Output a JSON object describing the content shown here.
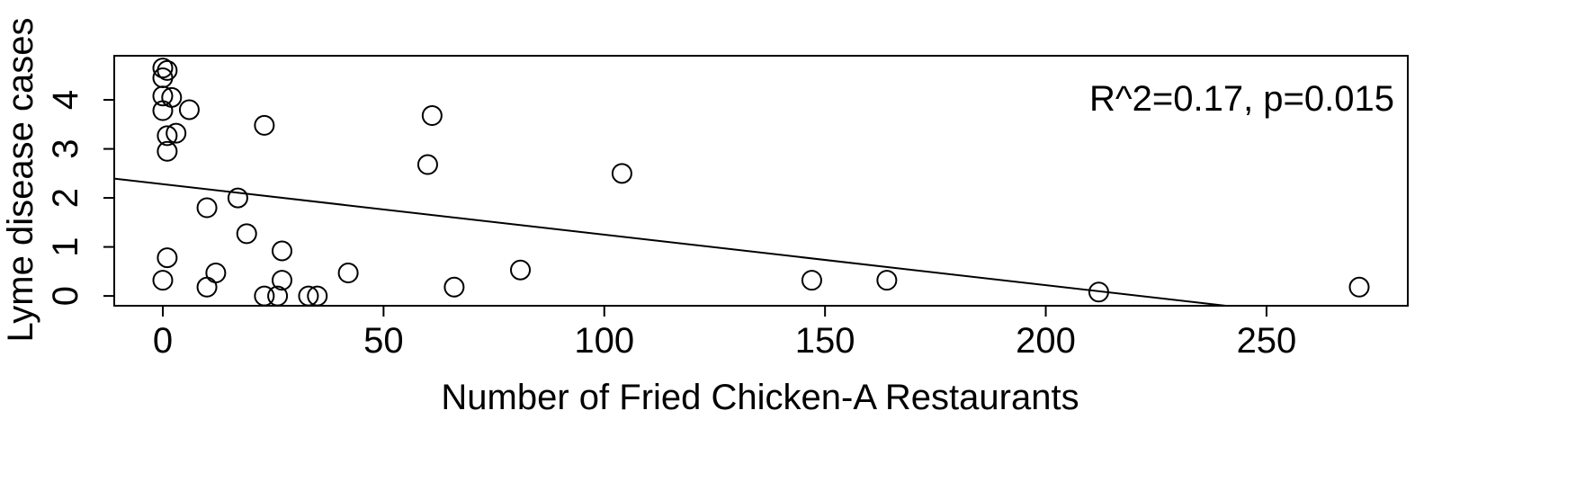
{
  "chart_data": {
    "type": "scatter",
    "title": "",
    "xlabel": "Number of Fried Chicken-A Restaurants",
    "ylabel": "Lyme disease cases",
    "xlim": [
      -11,
      282
    ],
    "ylim": [
      -0.2,
      4.9
    ],
    "x_ticks": [
      0,
      50,
      100,
      150,
      200,
      250
    ],
    "x_tick_labels": [
      "0",
      "50",
      "100",
      "150",
      "200",
      "250"
    ],
    "y_ticks": [
      0,
      1,
      2,
      3,
      4
    ],
    "y_tick_labels": [
      "0",
      "1",
      "2",
      "3",
      "4"
    ],
    "grid": false,
    "legend": "none",
    "annotation": "R^2=0.17, p=0.015",
    "regression": {
      "intercept": 2.28,
      "slope": -0.0103
    },
    "points": [
      {
        "x": 0,
        "y": 4.65
      },
      {
        "x": 1,
        "y": 4.6
      },
      {
        "x": 0,
        "y": 4.45
      },
      {
        "x": 0,
        "y": 4.08
      },
      {
        "x": 2,
        "y": 4.05
      },
      {
        "x": 0,
        "y": 3.78
      },
      {
        "x": 6,
        "y": 3.8
      },
      {
        "x": 1,
        "y": 3.27
      },
      {
        "x": 3,
        "y": 3.32
      },
      {
        "x": 1,
        "y": 2.95
      },
      {
        "x": 23,
        "y": 3.48
      },
      {
        "x": 61,
        "y": 3.68
      },
      {
        "x": 60,
        "y": 2.68
      },
      {
        "x": 104,
        "y": 2.5
      },
      {
        "x": 17,
        "y": 2.0
      },
      {
        "x": 10,
        "y": 1.8
      },
      {
        "x": 19,
        "y": 1.27
      },
      {
        "x": 27,
        "y": 0.92
      },
      {
        "x": 1,
        "y": 0.78
      },
      {
        "x": 0,
        "y": 0.32
      },
      {
        "x": 12,
        "y": 0.47
      },
      {
        "x": 10,
        "y": 0.18
      },
      {
        "x": 23,
        "y": 0.0
      },
      {
        "x": 26,
        "y": 0.0
      },
      {
        "x": 27,
        "y": 0.32
      },
      {
        "x": 33,
        "y": 0.0
      },
      {
        "x": 35,
        "y": 0.0
      },
      {
        "x": 42,
        "y": 0.47
      },
      {
        "x": 66,
        "y": 0.18
      },
      {
        "x": 81,
        "y": 0.53
      },
      {
        "x": 147,
        "y": 0.32
      },
      {
        "x": 164,
        "y": 0.32
      },
      {
        "x": 212,
        "y": 0.08
      },
      {
        "x": 271,
        "y": 0.18
      }
    ]
  }
}
